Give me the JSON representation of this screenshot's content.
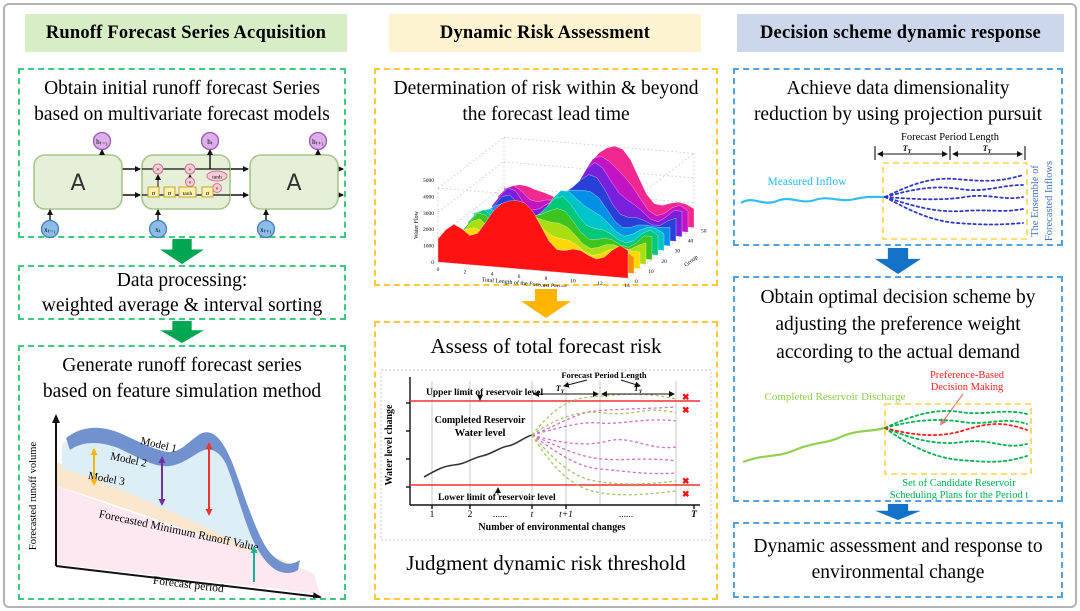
{
  "sym": {
    "ty": "T",
    "ty_sub": "Y",
    "cross": "✖"
  },
  "colors": {
    "header1_bg": "#d7edc5",
    "header2_bg": "#fdf3d0",
    "header3_bg": "#cdd7ec",
    "col1_accent": "#3fc87e",
    "col2_accent": "#ffc83d",
    "col3_accent": "#55a0dd",
    "arrow_green": "#00a651",
    "arrow_yellow": "#ffb400",
    "arrow_blue": "#1172c8",
    "upper_lower_limit_line": "#f03030"
  },
  "headers": {
    "col1": "Runoff Forecast Series Acquisition",
    "col2": "Dynamic Risk Assessment",
    "col3": "Decision scheme dynamic response"
  },
  "col1": {
    "box1_lines": [
      "Obtain initial runoff forecast Series",
      "based on multivariate forecast models"
    ],
    "lstm": {
      "cell_label": "A",
      "h_labels": [
        "hₜ₋₁",
        "hₜ",
        "hₜ₊₁"
      ],
      "x_labels": [
        "xₜ₋₁",
        "xₜ",
        "xₜ₊₁"
      ],
      "gates": [
        "σ",
        "σ",
        "tanh",
        "σ"
      ],
      "ops": [
        "×",
        "+",
        "×",
        "tanh",
        "×"
      ]
    },
    "box2_line1": "Data processing:",
    "box2_line2": "weighted average & interval sorting",
    "box3_lines": [
      "Generate runoff forecast series",
      "based on feature simulation method"
    ],
    "runoff_chart": {
      "ylabel": "Forecasted runoff volume",
      "xlabel": "Forecast period",
      "models": [
        "Model 1",
        "Model 2",
        "Model 3"
      ],
      "min_label": "Forecasted Minimum  Runoff Value"
    }
  },
  "col2": {
    "box1_lines": [
      "Determination of risk within & beyond",
      "the forecast lead time"
    ],
    "waterfall": {
      "type": "3d-ridge",
      "ylabel": "Water Flow",
      "xlabel": "Total Length of the Forecast Period",
      "group_label": "Group",
      "yticks": [
        "0",
        "1000",
        "2000",
        "3000",
        "4000",
        "5000"
      ],
      "xticks": [
        "0",
        "2",
        "4",
        "6",
        "8",
        "10",
        "12",
        "14"
      ],
      "group_ticks": [
        "0",
        "10",
        "20",
        "30",
        "40",
        "50"
      ],
      "ridges": [
        {
          "c": "#fe1212",
          "a": 52,
          "b": 20,
          "p": 0.4
        },
        {
          "c": "#ff8c00",
          "a": 26,
          "b": 13,
          "p": 0.42
        },
        {
          "c": "#ffd800",
          "a": 24,
          "b": 13,
          "p": 0.44
        },
        {
          "c": "#aade10",
          "a": 26,
          "b": 13,
          "p": 0.46
        },
        {
          "c": "#3ec41e",
          "a": 30,
          "b": 13,
          "p": 0.47
        },
        {
          "c": "#00c878",
          "a": 34,
          "b": 13,
          "p": 0.48
        },
        {
          "c": "#00c4cc",
          "a": 36,
          "b": 14,
          "p": 0.5
        },
        {
          "c": "#0090e8",
          "a": 38,
          "b": 14,
          "p": 0.52
        },
        {
          "c": "#2840d8",
          "a": 44,
          "b": 14,
          "p": 0.53
        },
        {
          "c": "#7a20dc",
          "a": 48,
          "b": 15,
          "p": 0.55
        },
        {
          "c": "#c214c2",
          "a": 54,
          "b": 15,
          "p": 0.56
        },
        {
          "c": "#f02890",
          "a": 62,
          "b": 16,
          "p": 0.57
        }
      ]
    },
    "box2_title": "Assess of total forecast risk",
    "risk_chart": {
      "ylabel": "Water level change",
      "xlabel": "Number of environmental changes",
      "xticks": [
        "1",
        "2",
        "......",
        "t",
        "t+1",
        "......",
        "T"
      ],
      "upper_label": "Upper limit of reservoir level",
      "lower_label": "Lower limit of reservoir level",
      "curve_label1": "Completed Reservoir",
      "curve_label2": "Water level",
      "fpl": "Forecast Period Length"
    },
    "box2_footer": "Judgment dynamic risk threshold"
  },
  "col3": {
    "box1_lines": [
      "Achieve data dimensionality",
      "reduction by using projection pursuit"
    ],
    "inflow": {
      "fpl": "Forecast Period Length",
      "measured": "Measured Inflow",
      "ensemble1": "The Ensemble of",
      "ensemble2": "Forecasted Inflows"
    },
    "box2_lines": [
      "Obtain optimal decision scheme by",
      "adjusting the preference weight",
      "according to the actual demand"
    ],
    "discharge": {
      "pref1": "Preference-Based",
      "pref2": "Decision Making",
      "completed": "Completed Reservoir Discharge",
      "set1": "Set of Candidate Reservoir",
      "set2": "Scheduling Plans for the Period t"
    },
    "box3_lines": [
      "Dynamic assessment and response to",
      "environmental change"
    ]
  }
}
